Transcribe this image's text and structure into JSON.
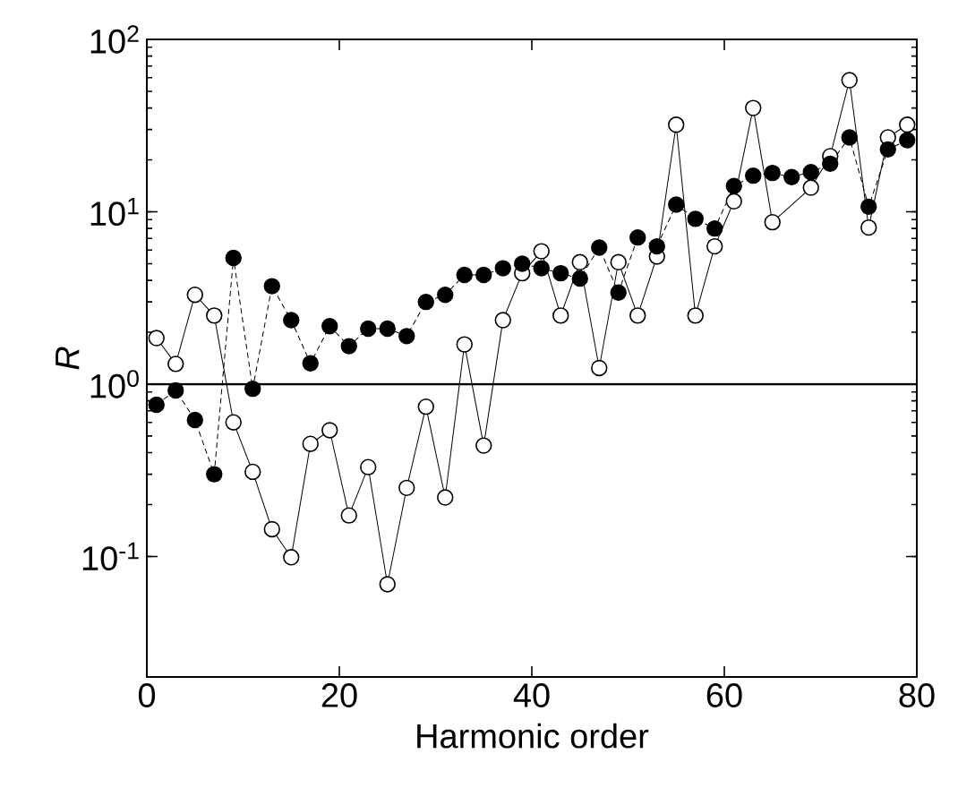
{
  "chart_data": {
    "type": "line",
    "xlabel": "Harmonic order",
    "ylabel": "R",
    "log": "y",
    "xlim": [
      0,
      80
    ],
    "ylim": [
      0.02,
      100
    ],
    "xticks": [
      0,
      20,
      40,
      60,
      80
    ],
    "yticks": [
      {
        "value": 0.1,
        "label": "10$^{-1}$"
      },
      {
        "value": 1,
        "label": "10$^{0}$"
      },
      {
        "value": 10,
        "label": "10$^{1}$"
      },
      {
        "value": 100,
        "label": "10$^{2}$"
      }
    ],
    "marker": "circle",
    "x": [
      1,
      3,
      5,
      7,
      9,
      11,
      13,
      15,
      17,
      19,
      21,
      23,
      25,
      27,
      29,
      31,
      33,
      35,
      37,
      39,
      41,
      43,
      45,
      47,
      49,
      51,
      53,
      55,
      57,
      59,
      61,
      63,
      65,
      67,
      69,
      71,
      73,
      75,
      77,
      79
    ],
    "series": [
      {
        "color": "#000000",
        "line_style": "dashed",
        "values": [
          0.76,
          0.92,
          0.62,
          0.3,
          5.4,
          0.94,
          3.7,
          2.35,
          1.32,
          2.17,
          1.66,
          2.1,
          2.1,
          1.9,
          3.0,
          3.3,
          4.3,
          4.3,
          4.7,
          5.0,
          4.7,
          4.4,
          4.1,
          6.2,
          3.4,
          7.1,
          6.3,
          11,
          9.1,
          8.0,
          14.1,
          16.2,
          16.8,
          15.9,
          17,
          19,
          27,
          10.7,
          23,
          26
        ]
      },
      {
        "color": "#ffffff",
        "line_style": "solid",
        "values": [
          1.85,
          1.31,
          3.3,
          2.5,
          0.6,
          0.31,
          0.144,
          0.099,
          0.45,
          0.54,
          0.173,
          0.33,
          0.069,
          0.25,
          0.74,
          0.22,
          1.7,
          0.44,
          2.35,
          4.4,
          5.9,
          2.5,
          5.1,
          1.24,
          5.1,
          2.5,
          5.5,
          32,
          2.5,
          6.3,
          11.5,
          40,
          8.7,
          null,
          13.8,
          21,
          58,
          8.1,
          27,
          32
        ]
      }
    ],
    "ref_lines": [
      {
        "axis": "y",
        "value": 1
      }
    ]
  }
}
